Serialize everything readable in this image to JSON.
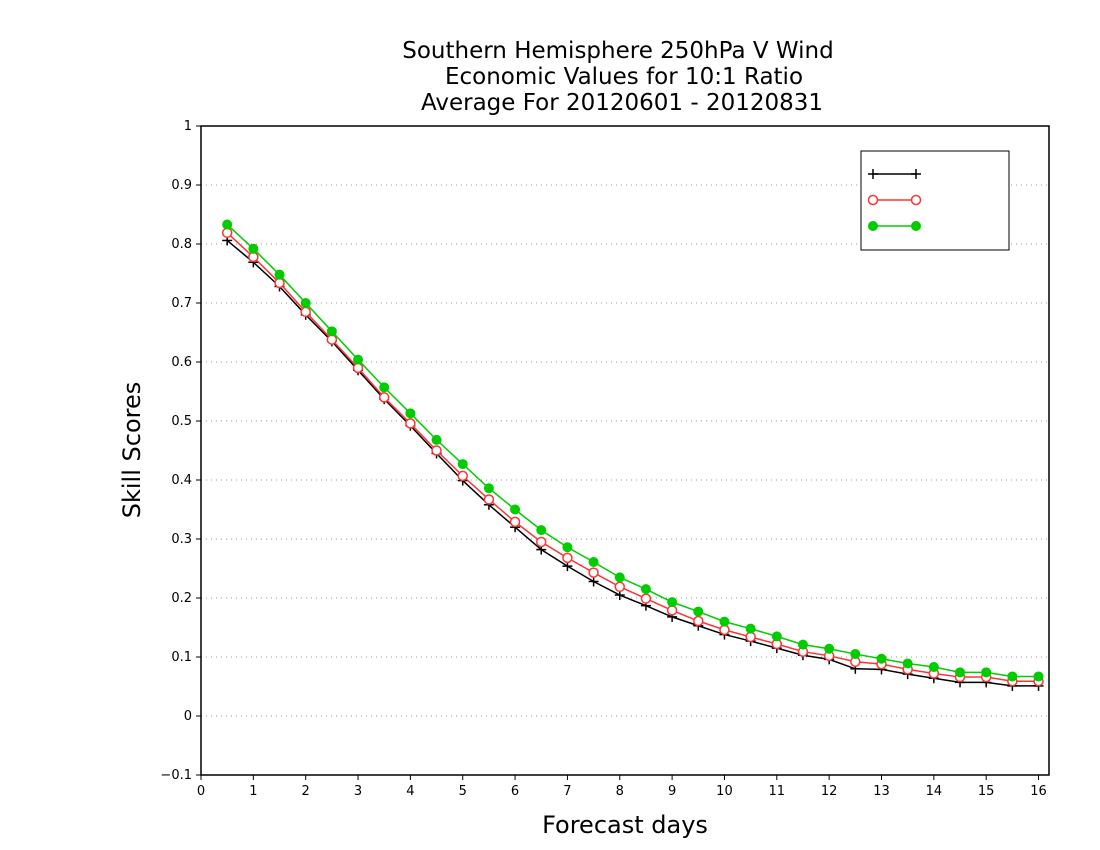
{
  "chart_data": {
    "type": "line",
    "title_lines": [
      "Southern Hemisphere 250hPa V Wind",
      "Economic Values for 10:1 Ratio",
      "Average For 20120601 - 20120831"
    ],
    "xlabel": "Forecast days",
    "ylabel": "Skill Scores",
    "xlim": [
      0,
      16.2
    ],
    "ylim": [
      -0.1,
      1
    ],
    "xticks": [
      "0",
      "1",
      "2",
      "3",
      "4",
      "5",
      "6",
      "7",
      "8",
      "9",
      "10",
      "11",
      "12",
      "13",
      "14",
      "15",
      "16"
    ],
    "yticks": [
      "-0.1",
      "0",
      "0.1",
      "0.2",
      "0.3",
      "0.4",
      "0.5",
      "0.6",
      "0.7",
      "0.8",
      "0.9",
      "1"
    ],
    "grid": "dotted horizontal",
    "legend_position": "top-right",
    "x": [
      0.5,
      1,
      1.5,
      2,
      2.5,
      3,
      3.5,
      4,
      4.5,
      5,
      5.5,
      6,
      6.5,
      7,
      7.5,
      8,
      8.5,
      9,
      9.5,
      10,
      10.5,
      11,
      11.5,
      12,
      12.5,
      13,
      13.5,
      14,
      14.5,
      15,
      15.5,
      16
    ],
    "series": [
      {
        "name": "",
        "color": "#000000",
        "marker": "plus",
        "values": [
          0.806,
          0.769,
          0.728,
          0.68,
          0.635,
          0.586,
          0.537,
          0.492,
          0.445,
          0.399,
          0.358,
          0.32,
          0.282,
          0.254,
          0.228,
          0.205,
          0.187,
          0.168,
          0.153,
          0.138,
          0.127,
          0.115,
          0.103,
          0.096,
          0.08,
          0.079,
          0.071,
          0.064,
          0.057,
          0.057,
          0.051,
          0.051
        ]
      },
      {
        "name": "",
        "color": "#ff3333",
        "marker": "open-circle",
        "values": [
          0.819,
          0.778,
          0.734,
          0.685,
          0.638,
          0.59,
          0.54,
          0.496,
          0.45,
          0.407,
          0.367,
          0.329,
          0.295,
          0.268,
          0.243,
          0.219,
          0.199,
          0.179,
          0.161,
          0.146,
          0.134,
          0.122,
          0.109,
          0.102,
          0.092,
          0.088,
          0.079,
          0.072,
          0.066,
          0.066,
          0.059,
          0.059
        ]
      },
      {
        "name": "",
        "color": "#00cc00",
        "marker": "filled-circle",
        "values": [
          0.833,
          0.792,
          0.748,
          0.7,
          0.652,
          0.604,
          0.557,
          0.513,
          0.468,
          0.427,
          0.386,
          0.35,
          0.315,
          0.286,
          0.261,
          0.235,
          0.215,
          0.193,
          0.177,
          0.16,
          0.148,
          0.135,
          0.121,
          0.114,
          0.105,
          0.097,
          0.089,
          0.083,
          0.074,
          0.074,
          0.067,
          0.067
        ]
      }
    ]
  }
}
